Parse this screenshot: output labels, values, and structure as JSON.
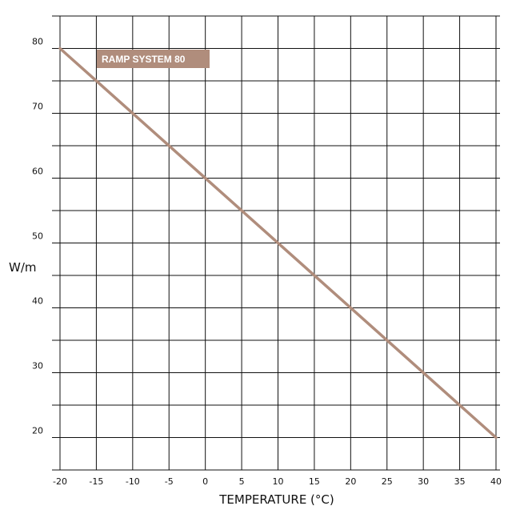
{
  "chart_data": {
    "type": "line",
    "xlabel": "TEMPERATURE (°C)",
    "ylabel": "W/m",
    "x_ticks": [
      "-20",
      "-15",
      "-10",
      "-5",
      "0",
      "5",
      "10",
      "15",
      "20",
      "25",
      "30",
      "35",
      "40"
    ],
    "y_ticks": [
      "20",
      "30",
      "40",
      "50",
      "60",
      "70",
      "80"
    ],
    "xlim": [
      -20,
      40
    ],
    "ylim": [
      15,
      85
    ],
    "grid": true,
    "series": [
      {
        "name": "RAMP SYSTEM 80",
        "x": [
          -20,
          40
        ],
        "y": [
          80,
          20
        ]
      }
    ],
    "colors": {
      "line": "#b08d7c",
      "label_bg": "#b08d7c",
      "grid": "#111111"
    }
  }
}
